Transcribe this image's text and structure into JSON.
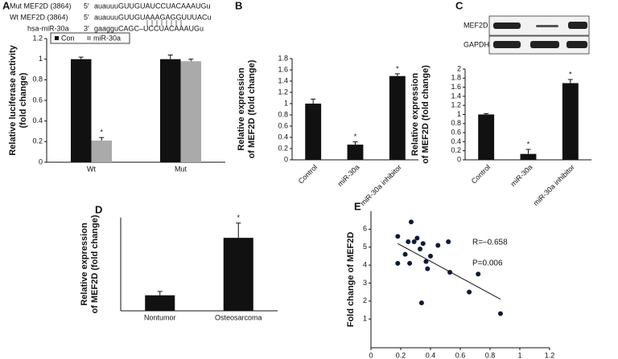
{
  "chart_data": [
    {
      "type": "bar",
      "panel": "A",
      "sequences": [
        {
          "label": "Mut MEF2D (3864)",
          "end": "5′",
          "seq": "auauuuGUUGUAUCCUACAAAUGu"
        },
        {
          "label": "Wt MEF2D (3864)",
          "end": "5′",
          "seq": "auauuuGUUGUAAAGAGGUUUACu"
        },
        {
          "label": "hsa-miR-30a",
          "end": "3′",
          "seq": "gaagguCAGC–UCCUACAAAUGu"
        }
      ],
      "y_label": [
        "Relative luciferase activity",
        "(fold change)"
      ],
      "categories": [
        "Wt",
        "Mut"
      ],
      "series": [
        {
          "name": "Con",
          "color": "#111111",
          "values": [
            1.0,
            1.0
          ],
          "errors": [
            0.02,
            0.04
          ]
        },
        {
          "name": "miR-30a",
          "color": "#aaaaaa",
          "values": [
            0.21,
            0.98
          ],
          "errors": [
            0.03,
            0.02
          ],
          "significance": [
            "*",
            null
          ]
        }
      ],
      "ylim": [
        0,
        1.2
      ],
      "yticks": [
        0,
        0.2,
        0.4,
        0.6,
        0.8,
        1,
        1.2
      ]
    },
    {
      "type": "bar",
      "panel": "B",
      "y_label": [
        "Relative expression",
        "of MEF2D (fold change)"
      ],
      "categories": [
        "Control",
        "miR-30a",
        "miR-30a inhibitor"
      ],
      "values": [
        1.0,
        0.27,
        1.49
      ],
      "errors": [
        0.08,
        0.05,
        0.04
      ],
      "significance": [
        null,
        "*",
        "*"
      ],
      "color": "#111111",
      "ylim": [
        0,
        1.8
      ],
      "yticks": [
        0,
        0.2,
        0.4,
        0.6,
        0.8,
        1,
        1.2,
        1.4,
        1.6,
        1.8
      ]
    },
    {
      "type": "bar",
      "panel": "C",
      "blot_labels": [
        "MEF2D",
        "GAPDH"
      ],
      "y_label": [
        "Relative expression",
        "of MEF2D (fold change)"
      ],
      "categories": [
        "Control",
        "miR-30a",
        "miR-30a inhibitor"
      ],
      "values": [
        1.0,
        0.13,
        1.69
      ],
      "errors": [
        0.02,
        0.1,
        0.08
      ],
      "significance": [
        null,
        "*",
        "*"
      ],
      "color": "#111111",
      "ylim": [
        0,
        2
      ],
      "yticks": [
        0,
        0.2,
        0.4,
        0.6,
        0.8,
        1,
        1.2,
        1.4,
        1.6,
        1.8,
        2
      ]
    },
    {
      "type": "bar",
      "panel": "D",
      "y_label": [
        "Relative expression",
        "of MEF2D (fold change)"
      ],
      "categories": [
        "Nontumor",
        "Osteosarcoma"
      ],
      "values": [
        1.0,
        4.7
      ],
      "errors": [
        0.25,
        0.95
      ],
      "significance": [
        null,
        "*"
      ],
      "color": "#111111",
      "ylim": [
        0,
        6
      ]
    },
    {
      "type": "scatter",
      "panel": "E",
      "y_label": [
        "Fold change of MEF2D"
      ],
      "x": [
        0.18,
        0.18,
        0.23,
        0.25,
        0.27,
        0.26,
        0.29,
        0.31,
        0.33,
        0.34,
        0.35,
        0.37,
        0.38,
        0.4,
        0.45,
        0.52,
        0.53,
        0.66,
        0.72,
        0.87
      ],
      "y": [
        5.6,
        4.1,
        4.6,
        5.3,
        6.4,
        4.1,
        5.3,
        5.5,
        4.9,
        1.9,
        5.2,
        4.2,
        3.8,
        4.5,
        5.1,
        5.3,
        3.6,
        2.5,
        3.5,
        1.3
      ],
      "color": "#0d1b3a",
      "fit_line": {
        "x": [
          0.18,
          0.87
        ],
        "y": [
          5.2,
          2.1
        ]
      },
      "annotations": [
        "R=–0.658",
        "P=0.006"
      ],
      "xlim": [
        0,
        1.2
      ],
      "xticks": [
        0,
        0.2,
        0.4,
        0.6,
        0.8,
        1,
        1.2
      ],
      "ylim": [
        -0.6,
        7
      ],
      "yticks": [
        1,
        2,
        3,
        4,
        5,
        6
      ]
    }
  ]
}
